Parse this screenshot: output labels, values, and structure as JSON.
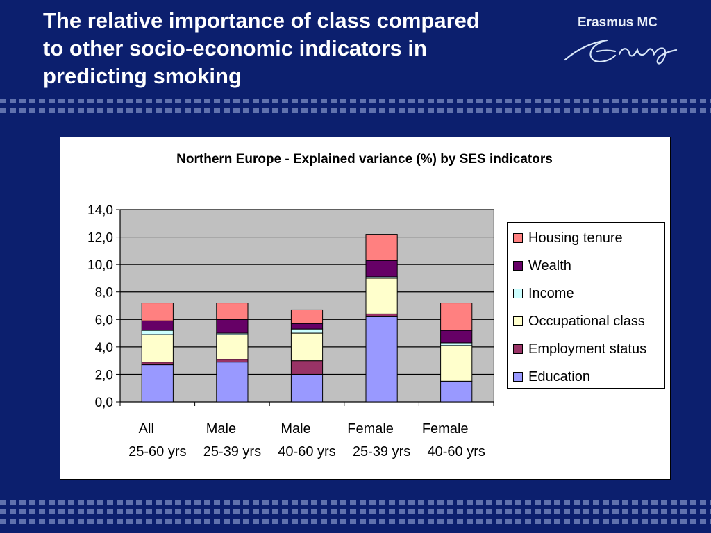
{
  "slide": {
    "title_lines": [
      "The relative importance of class compared",
      "to other socio-economic indicators in",
      "predicting smoking"
    ],
    "logo_text": "Erasmus MC"
  },
  "chart_data": {
    "type": "bar",
    "stacked": true,
    "title": "Northern Europe - Explained variance (%) by SES indicators",
    "categories": [
      [
        "All",
        "25-60 yrs"
      ],
      [
        "Male",
        "25-39 yrs"
      ],
      [
        "Male",
        "40-60 yrs"
      ],
      [
        "Female",
        "25-39 yrs"
      ],
      [
        "Female",
        "40-60 yrs"
      ]
    ],
    "ylim": [
      0,
      14
    ],
    "yticks": [
      0,
      2,
      4,
      6,
      8,
      10,
      12,
      14
    ],
    "ytick_labels": [
      "0,0",
      "2,0",
      "4,0",
      "6,0",
      "8,0",
      "10,0",
      "12,0",
      "14,0"
    ],
    "grid": true,
    "legend_position": "right",
    "series": [
      {
        "name": "Education",
        "color": "#9999ff",
        "values": [
          2.7,
          2.9,
          2.0,
          6.2,
          1.5
        ]
      },
      {
        "name": "Employment status",
        "color": "#993366",
        "values": [
          0.2,
          0.2,
          1.0,
          0.2,
          0.0
        ]
      },
      {
        "name": "Occupational class",
        "color": "#ffffcc",
        "values": [
          2.0,
          1.8,
          2.0,
          2.6,
          2.6
        ]
      },
      {
        "name": "Income",
        "color": "#ccffff",
        "values": [
          0.3,
          0.1,
          0.3,
          0.1,
          0.2
        ]
      },
      {
        "name": "Wealth",
        "color": "#660066",
        "values": [
          0.7,
          1.0,
          0.4,
          1.2,
          0.9
        ]
      },
      {
        "name": "Housing tenure",
        "color": "#ff8080",
        "values": [
          1.3,
          1.2,
          1.0,
          1.9,
          2.0
        ]
      }
    ]
  }
}
